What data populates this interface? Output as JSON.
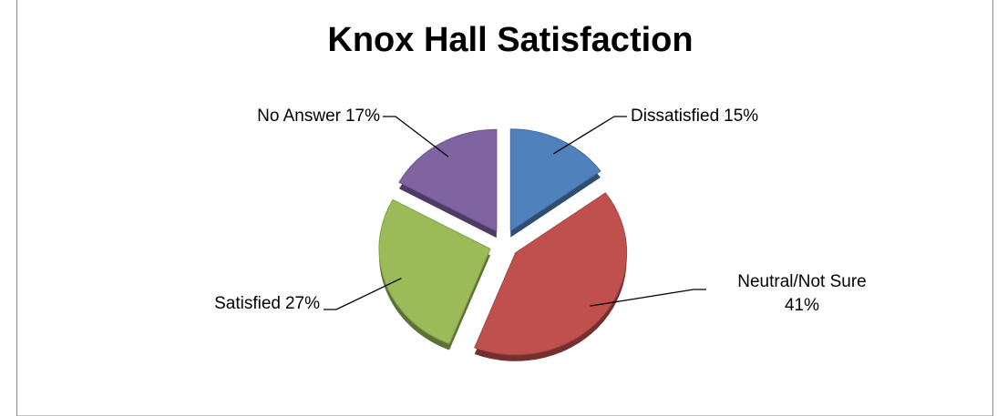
{
  "chart_data": {
    "type": "pie",
    "title": "Knox Hall Satisfaction",
    "categories": [
      "Dissatisfied",
      "Neutral/Not Sure",
      "Satisfied",
      "No Answer"
    ],
    "values": [
      15,
      41,
      27,
      17
    ],
    "value_labels": [
      "15%",
      "41%",
      "27%",
      "17%"
    ],
    "colors": [
      "#4f81bd",
      "#c0504d",
      "#9bbb59",
      "#8064a2"
    ],
    "exploded": true
  }
}
